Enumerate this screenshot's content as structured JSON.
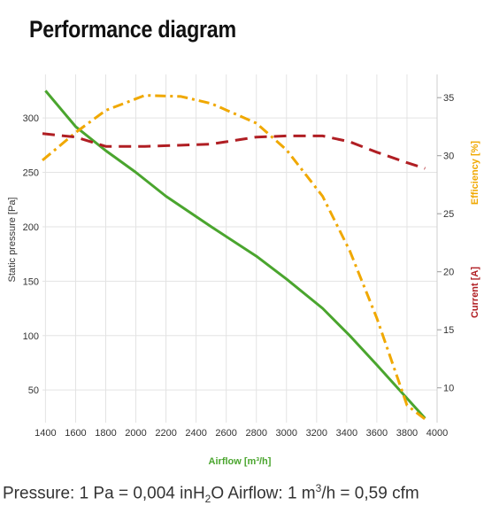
{
  "page": {
    "title": "Performance diagram"
  },
  "footer": {
    "pressure_label": "Pressure: 1 Pa = 0,004 inH",
    "pressure_sub": "2",
    "pressure_unit_tail": "O",
    "airflow_label": "Airflow: 1 m",
    "airflow_sup": "3",
    "airflow_tail": "/h = 0,59 cfm"
  },
  "chart_data": {
    "type": "line",
    "xlabel": "Airflow [m³/h]",
    "ylabel_left": "Static pressure [Pa]",
    "ylabel_right_top": "Efficiency [%]",
    "ylabel_right_bottom": "Current [A]",
    "x_ticks": [
      1400,
      1600,
      1800,
      2000,
      2200,
      2400,
      2600,
      2800,
      3000,
      3200,
      3400,
      3600,
      3800,
      4000
    ],
    "y_left_ticks": [
      50,
      100,
      150,
      200,
      250,
      300
    ],
    "y_right_ticks": [
      10,
      15,
      20,
      25,
      30,
      35
    ],
    "xlim": [
      1380,
      4000
    ],
    "ylim_left": [
      20,
      340
    ],
    "ylim_right": [
      7,
      37
    ],
    "grid": true,
    "colors": {
      "pressure": "#4aa52e",
      "efficiency": "#f0a800",
      "current": "#b01e23",
      "xlabel": "#4aa52e",
      "efficiency_label": "#f0a800",
      "current_label": "#b01e23"
    },
    "series": [
      {
        "key": "pressure",
        "axis": "left",
        "style": "solid",
        "x": [
          1400,
          1600,
          1800,
          2000,
          2200,
          2500,
          2800,
          3000,
          3240,
          3420,
          3600,
          3920
        ],
        "y": [
          325,
          292,
          270,
          250,
          228,
          200,
          173,
          152,
          125,
          100,
          73,
          24
        ]
      },
      {
        "key": "efficiency",
        "axis": "right",
        "style": "dashdot",
        "x": [
          1380,
          1600,
          1800,
          2060,
          2300,
          2500,
          2800,
          3000,
          3240,
          3420,
          3600,
          3800,
          3920
        ],
        "y": [
          29.6,
          32,
          33.9,
          35.2,
          35.1,
          34.5,
          32.8,
          30.5,
          26.5,
          21.8,
          16,
          8.5,
          7.3
        ]
      },
      {
        "key": "current",
        "axis": "right",
        "style": "dashed",
        "x": [
          1380,
          1600,
          1800,
          2060,
          2300,
          2500,
          2800,
          3000,
          3240,
          3420,
          3600,
          3800,
          3920
        ],
        "y": [
          31.9,
          31.6,
          30.8,
          30.8,
          30.9,
          31,
          31.6,
          31.7,
          31.7,
          31.2,
          30.3,
          29.4,
          28.9
        ]
      }
    ]
  }
}
